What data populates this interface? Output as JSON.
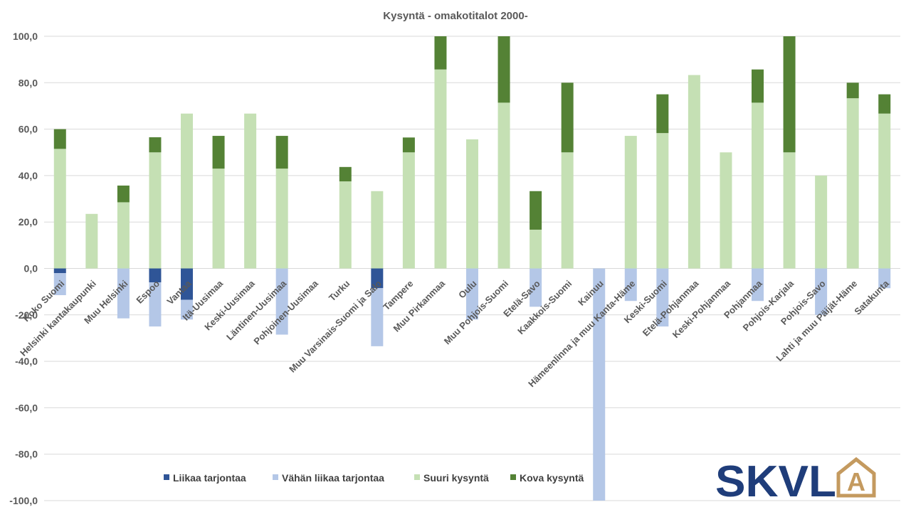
{
  "chart_data": {
    "type": "bar",
    "stacked": true,
    "title": "Kysyntä - omakotitalot 2000-",
    "ylim": [
      -100,
      100
    ],
    "yticks": [
      "100,0",
      "80,0",
      "60,0",
      "40,0",
      "20,0",
      "0,0",
      "-20,0",
      "-40,0",
      "-60,0",
      "-80,0",
      "-100,0"
    ],
    "grid": true,
    "legend_position": "bottom",
    "categories": [
      "Koko Suomi",
      "Helsinki kantakaupunki",
      "Muu Helsinki",
      "Espoo",
      "Vantaa",
      "Itä-Uusimaa",
      "Keski-Uusimaa",
      "Läntinen-Uusimaa",
      "Pohjoinen-Uusimaa",
      "Turku",
      "Muu Varsinais-Suomi ja Salo",
      "Tampere",
      "Muu Pirkanmaa",
      "Oulu",
      "Muu Pohjois-Suomi",
      "Etelä-Savo",
      "Kaakkois-Suomi",
      "Kainuu",
      "Hämeenlinna ja muu Kanta-Häme",
      "Keski-Suomi",
      "Etelä-Pohjanmaa",
      "Keski-Pohjanmaa",
      "Pohjanmaa",
      "Pohjois-Karjala",
      "Pohjois-Savo",
      "Lahti ja muu Päijät-Häme",
      "Satakunta"
    ],
    "series": [
      {
        "name": "Liikaa tarjontaa",
        "color": "#2f5597",
        "values": [
          -2,
          0,
          0,
          -6,
          -13.5,
          0,
          0,
          0,
          0,
          0,
          -8.5,
          0,
          0,
          0,
          0,
          0,
          0,
          0,
          0,
          0,
          0,
          0,
          0,
          0,
          0,
          0,
          0
        ]
      },
      {
        "name": "Vähän liikaa tarjontaa",
        "color": "#b4c7e7",
        "values": [
          -9.5,
          0,
          -21.5,
          -19,
          -8.5,
          0,
          0,
          -28.5,
          0,
          0,
          -25,
          0,
          0,
          -22,
          0,
          -16.5,
          0,
          -100,
          -14,
          -25,
          0,
          0,
          -14,
          0,
          -20,
          0,
          -8.5
        ]
      },
      {
        "name": "Suuri kysyntä",
        "color": "#c5e0b4",
        "values": [
          51.5,
          23.5,
          28.5,
          50,
          66.7,
          43,
          66.7,
          43,
          0,
          37.5,
          33.3,
          50,
          85.7,
          55.6,
          71.4,
          16.7,
          50,
          0,
          57.1,
          58.3,
          83.3,
          50,
          71.4,
          50,
          40,
          73.3,
          66.7
        ]
      },
      {
        "name": "Kova kysyntä",
        "color": "#548235",
        "values": [
          8.5,
          0,
          7.2,
          6.5,
          0,
          14.1,
          0,
          14.1,
          0,
          6.2,
          0,
          6.4,
          14.3,
          0,
          28.6,
          16.6,
          30,
          0,
          0,
          16.7,
          0,
          0,
          14.3,
          50,
          0,
          6.7,
          8.3
        ]
      }
    ]
  },
  "logo": {
    "text": "SKVL",
    "emblem": "A"
  }
}
